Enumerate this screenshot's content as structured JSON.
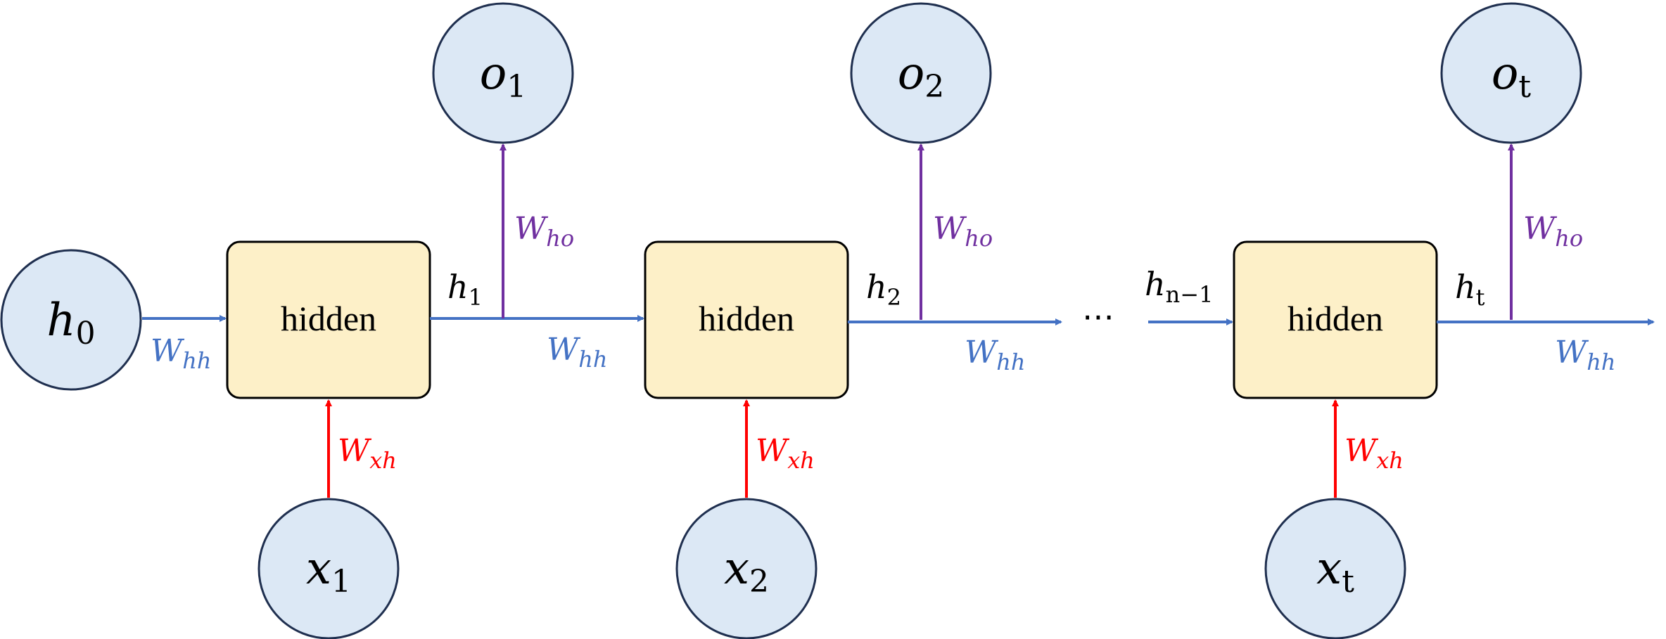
{
  "colors": {
    "hh": "#4472c4",
    "xh": "#ff0000",
    "ho": "#7030a0",
    "circle_fill": "#dce8f5",
    "box_fill": "#fdf0c8"
  },
  "initial_state": {
    "base": "h",
    "sub": "0"
  },
  "cells": [
    {
      "box_label": "hidden",
      "input": {
        "base": "x",
        "sub": "1"
      },
      "output": {
        "base": "o",
        "sub": "1"
      },
      "state_out": {
        "base": "h",
        "sub": "1"
      }
    },
    {
      "box_label": "hidden",
      "input": {
        "base": "x",
        "sub": "2"
      },
      "output": {
        "base": "o",
        "sub": "2"
      },
      "state_out": {
        "base": "h",
        "sub": "2"
      }
    },
    {
      "box_label": "hidden",
      "input": {
        "base": "x",
        "sub": "t"
      },
      "output": {
        "base": "o",
        "sub": "t"
      },
      "state_in": {
        "base": "h",
        "sub": "n−1"
      },
      "state_out": {
        "base": "h",
        "sub": "t"
      }
    }
  ],
  "weights": {
    "hh": {
      "base": "W",
      "sub": "hh"
    },
    "xh": {
      "base": "W",
      "sub": "xh"
    },
    "ho": {
      "base": "W",
      "sub": "ho"
    }
  },
  "ellipsis": "⋯"
}
